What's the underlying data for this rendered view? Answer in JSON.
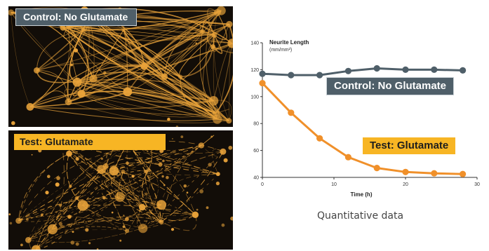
{
  "panels": {
    "control": {
      "label": "Control: No Glutamate"
    },
    "test": {
      "label": "Test: Glutamate"
    }
  },
  "caption": "Quantitative data",
  "colors": {
    "control": "#4f5f69",
    "test": "#f0902a",
    "neuron": "#e9a33a",
    "background": "#120d08"
  },
  "chart_data": {
    "type": "line",
    "title": "Neurite Length",
    "ylabel": "(mm/mm²)",
    "xlabel": "Time (h)",
    "xlim": [
      0,
      30
    ],
    "ylim": [
      40,
      140
    ],
    "xticks": [
      0,
      10,
      20,
      30
    ],
    "yticks": [
      40,
      60,
      80,
      100,
      120,
      140
    ],
    "grid": false,
    "series": [
      {
        "name": "Control: No Glutamate",
        "color": "#4f5f69",
        "x": [
          0,
          4,
          8,
          12,
          16,
          20,
          24,
          28
        ],
        "values": [
          117,
          116,
          116,
          119,
          121,
          120,
          120,
          119.5
        ]
      },
      {
        "name": "Test: Glutamate",
        "color": "#f0902a",
        "x": [
          0,
          4,
          8,
          12,
          16,
          20,
          24,
          28
        ],
        "values": [
          110,
          88,
          69,
          55,
          47,
          44,
          43,
          42.5
        ]
      }
    ]
  }
}
